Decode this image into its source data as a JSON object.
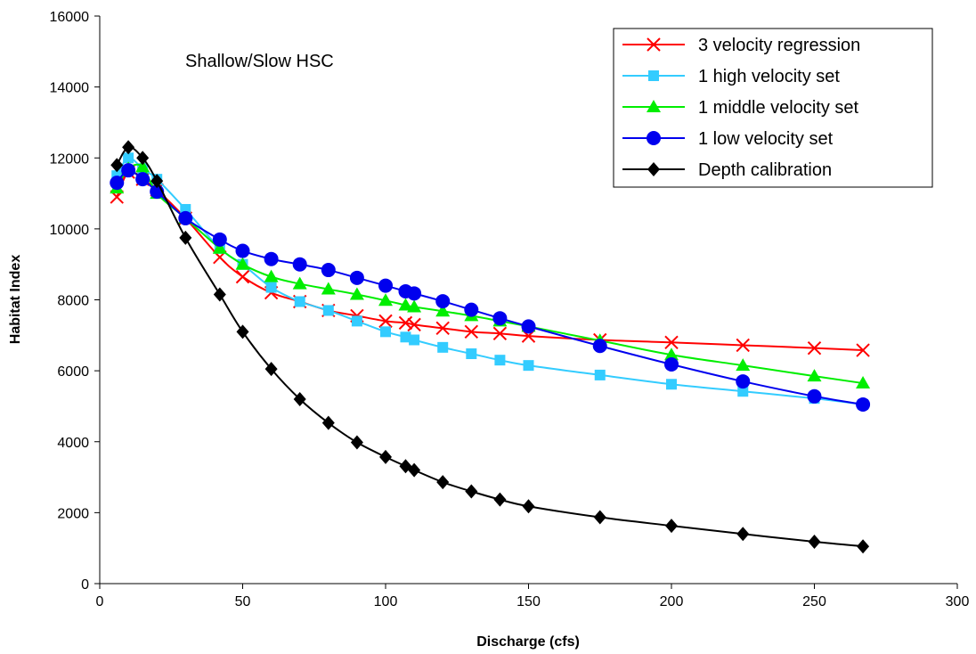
{
  "chart_data": {
    "type": "line",
    "title": "",
    "annotation": "Shallow/Slow HSC",
    "xlabel": "Discharge (cfs)",
    "ylabel": "Habitat Index",
    "xlim": [
      0,
      300
    ],
    "ylim": [
      0,
      16000
    ],
    "x_ticks": [
      0,
      50,
      100,
      150,
      200,
      250,
      300
    ],
    "y_ticks": [
      0,
      2000,
      4000,
      6000,
      8000,
      10000,
      12000,
      14000,
      16000
    ],
    "grid": false,
    "legend_position": "top-right",
    "x": [
      6,
      10,
      15,
      20,
      30,
      42,
      50,
      60,
      70,
      80,
      90,
      100,
      107,
      110,
      120,
      130,
      140,
      150,
      175,
      200,
      225,
      250,
      267
    ],
    "series": [
      {
        "name": "3 velocity regression",
        "color": "#ff0000",
        "marker": "x",
        "values": [
          10900,
          11600,
          11400,
          11100,
          10300,
          9200,
          8650,
          8200,
          7950,
          7700,
          7550,
          7400,
          7350,
          7300,
          7200,
          7100,
          7050,
          6980,
          6870,
          6800,
          6720,
          6640,
          6580
        ]
      },
      {
        "name": "1 high velocity set",
        "color": "#33ccff",
        "marker": "square",
        "values": [
          11500,
          12000,
          11700,
          11400,
          10550,
          9450,
          9000,
          8350,
          7950,
          7700,
          7400,
          7100,
          6950,
          6870,
          6660,
          6480,
          6300,
          6150,
          5880,
          5620,
          5420,
          5220,
          5050
        ]
      },
      {
        "name": "1 middle velocity set",
        "color": "#00ee00",
        "marker": "triangle",
        "values": [
          11150,
          11700,
          11750,
          11000,
          10300,
          9450,
          9000,
          8650,
          8450,
          8300,
          8150,
          7980,
          7850,
          7800,
          7680,
          7550,
          7400,
          7250,
          6850,
          6450,
          6150,
          5850,
          5650
        ]
      },
      {
        "name": "1 low velocity set",
        "color": "#0000ee",
        "marker": "circle",
        "values": [
          11300,
          11650,
          11400,
          11050,
          10300,
          9700,
          9380,
          9150,
          9000,
          8840,
          8620,
          8400,
          8240,
          8180,
          7960,
          7720,
          7480,
          7250,
          6700,
          6180,
          5700,
          5280,
          5050
        ]
      },
      {
        "name": "Depth calibration",
        "color": "#000000",
        "marker": "diamond",
        "values": [
          11800,
          12300,
          12000,
          11350,
          9750,
          8150,
          7100,
          6050,
          5200,
          4530,
          3980,
          3570,
          3310,
          3200,
          2860,
          2600,
          2370,
          2180,
          1870,
          1630,
          1400,
          1180,
          1050
        ]
      }
    ]
  }
}
